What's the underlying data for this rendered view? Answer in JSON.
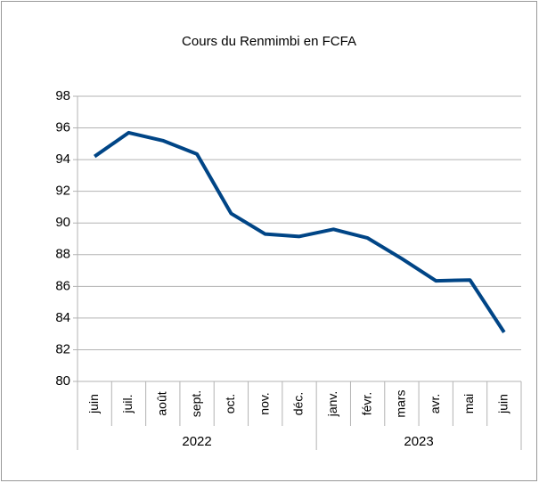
{
  "chart_data": {
    "type": "line",
    "title": "Cours du Renmimbi en FCFA",
    "categories": [
      "juin",
      "juil.",
      "août",
      "sept.",
      "oct.",
      "nov.",
      "déc.",
      "janv.",
      "févr.",
      "mars",
      "avr.",
      "mai",
      "juin"
    ],
    "category_groups": [
      {
        "label": "2022",
        "count": 7
      },
      {
        "label": "2023",
        "count": 6
      }
    ],
    "series": [
      {
        "color": "#004586",
        "values": [
          94.2,
          95.7,
          95.2,
          94.35,
          90.6,
          89.3,
          89.15,
          89.6,
          89.05,
          87.75,
          86.35,
          86.4,
          83.1
        ]
      }
    ],
    "ylim": [
      80,
      98
    ],
    "yticks": [
      80,
      82,
      84,
      86,
      88,
      90,
      92,
      94,
      96,
      98
    ],
    "grid": true
  }
}
